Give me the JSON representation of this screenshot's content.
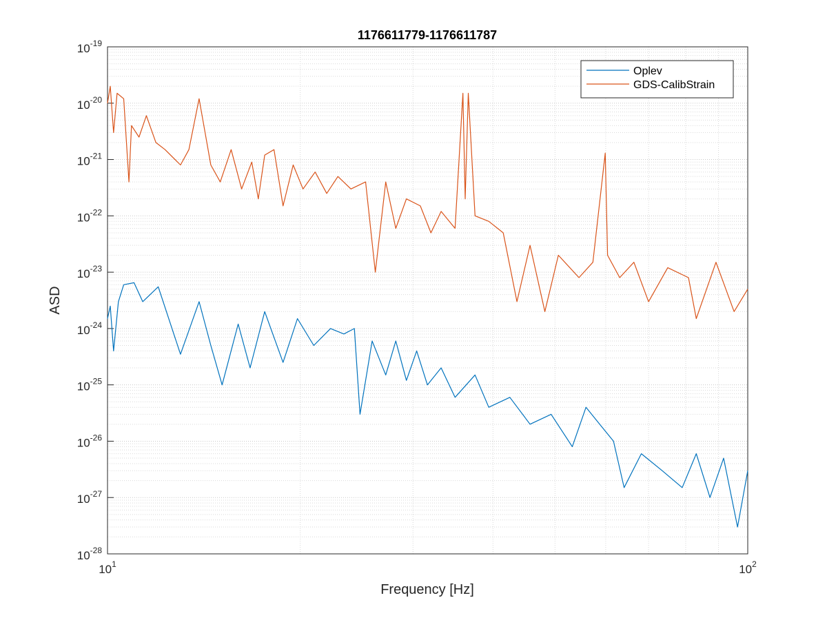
{
  "chart_data": {
    "type": "line",
    "title": "1176611779-1176611787",
    "xlabel": "Frequency [Hz]",
    "ylabel": "ASD",
    "xscale": "log",
    "yscale": "log",
    "xlim": [
      10,
      100
    ],
    "xticks": [
      {
        "value": 10,
        "label": "10^1"
      },
      {
        "value": 100,
        "label": "10^2"
      }
    ],
    "ylim": [
      1e-28,
      1e-19
    ],
    "yticks": [
      {
        "value": 1e-28,
        "label": "10^-28"
      },
      {
        "value": 1e-27,
        "label": "10^-27"
      },
      {
        "value": 1e-26,
        "label": "10^-26"
      },
      {
        "value": 1e-25,
        "label": "10^-25"
      },
      {
        "value": 1e-24,
        "label": "10^-24"
      },
      {
        "value": 1e-23,
        "label": "10^-23"
      },
      {
        "value": 1e-22,
        "label": "10^-22"
      },
      {
        "value": 1e-21,
        "label": "10^-21"
      },
      {
        "value": 1e-20,
        "label": "10^-20"
      },
      {
        "value": 1e-19,
        "label": "10^-19"
      }
    ],
    "grid": true,
    "minor_grid": true,
    "legend": "northeast",
    "series": [
      {
        "name": "Oplev",
        "color": "#0072bd",
        "x": [
          10,
          10.1,
          10.22,
          10.4,
          10.6,
          11,
          11.35,
          12.0,
          13.0,
          13.9,
          14.5,
          15.1,
          16.0,
          16.7,
          17.6,
          18.8,
          19.8,
          21.0,
          22.3,
          23.4,
          24.3,
          24.8,
          25.9,
          27.2,
          28.2,
          29.3,
          30.4,
          31.6,
          33.2,
          34.9,
          37.5,
          39.4,
          42.5,
          45.7,
          49.3,
          53.2,
          55.9,
          58.7,
          61.7,
          64.1,
          68.2,
          73.5,
          79.0,
          83.1,
          87.3,
          91.7,
          96.4,
          100
        ],
        "values": [
          1.5e-24,
          2.5e-24,
          4e-25,
          3e-24,
          6e-24,
          6.5e-24,
          3e-24,
          5.5e-24,
          3.5e-25,
          3e-24,
          5e-25,
          1e-25,
          1.2e-24,
          2e-25,
          2e-24,
          2.5e-25,
          1.5e-24,
          5e-25,
          1e-24,
          8e-25,
          1e-24,
          3e-26,
          6e-25,
          1.5e-25,
          6e-25,
          1.2e-25,
          4e-25,
          1e-25,
          2e-25,
          6e-26,
          1.5e-25,
          4e-26,
          6e-26,
          2e-26,
          3e-26,
          8e-27,
          4e-26,
          2e-26,
          1e-26,
          1.5e-27,
          6e-27,
          3e-27,
          1.5e-27,
          6e-27,
          1e-27,
          5e-27,
          3e-28,
          3e-27
        ]
      },
      {
        "name": "GDS-CalibStrain",
        "color": "#d95319",
        "x": [
          10,
          10.1,
          10.22,
          10.35,
          10.6,
          10.8,
          10.9,
          11.2,
          11.5,
          11.9,
          12.3,
          13.0,
          13.4,
          13.9,
          14.5,
          15.0,
          15.6,
          16.2,
          16.8,
          17.2,
          17.6,
          18.2,
          18.8,
          19.5,
          20.2,
          21.1,
          22.0,
          22.9,
          24.0,
          25.3,
          26.2,
          27.2,
          28.2,
          29.3,
          30.8,
          32.0,
          33.2,
          34.9,
          35.9,
          36.2,
          36.6,
          37.5,
          39.4,
          41.5,
          43.6,
          45.7,
          48.2,
          50.6,
          54.5,
          57.3,
          59.9,
          60.4,
          63.1,
          66.4,
          70.0,
          75.0,
          80.8,
          83.1,
          89.2,
          95.2,
          100
        ],
        "values": [
          1e-20,
          2e-20,
          3e-21,
          1.5e-20,
          1.2e-20,
          4e-22,
          4e-21,
          2.5e-21,
          6e-21,
          2e-21,
          1.5e-21,
          8e-22,
          1.5e-21,
          1.2e-20,
          8e-22,
          4e-22,
          1.5e-21,
          3e-22,
          9e-22,
          2e-22,
          1.2e-21,
          1.5e-21,
          1.5e-22,
          8e-22,
          3e-22,
          6e-22,
          2.5e-22,
          5e-22,
          3e-22,
          4e-22,
          1e-23,
          4e-22,
          6e-23,
          2e-22,
          1.5e-22,
          5e-23,
          1.2e-22,
          6e-23,
          1.5e-20,
          2e-22,
          1.5e-20,
          1e-22,
          8e-23,
          5e-23,
          3e-24,
          3e-23,
          2e-24,
          2e-23,
          8e-24,
          1.5e-23,
          1.3e-21,
          2e-23,
          8e-24,
          1.5e-23,
          3e-24,
          1.2e-23,
          8e-24,
          1.5e-24,
          1.5e-23,
          2e-24,
          5e-24
        ]
      }
    ]
  }
}
